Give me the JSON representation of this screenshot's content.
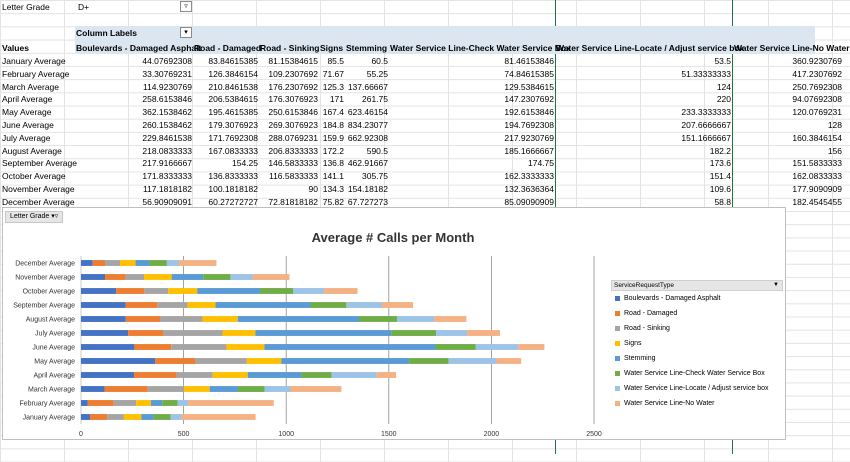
{
  "filter": {
    "label": "Letter Grade",
    "value": "D+",
    "button_icon": "filter-icon"
  },
  "pivot": {
    "column_labels": "Column Labels",
    "values_header": "Values",
    "columns": [
      "Boulevards - Damaged Asphalt",
      "Road - Damaged",
      "Road - Sinking",
      "Signs",
      "Stemming",
      "Water Service Line-Check Water Service Box",
      "Water Service Line-Locate / Adjust service box",
      "Water Service Line-No Water"
    ],
    "rows": [
      {
        "label": "January Average",
        "cells": [
          "44.07692308",
          "83.84615385",
          "81.15384615",
          "85.5",
          "60.5",
          "81.46153846",
          "53.5",
          "360.9230769"
        ]
      },
      {
        "label": "February Average",
        "cells": [
          "33.30769231",
          "126.3846154",
          "109.2307692",
          "71.67",
          "55.25",
          "74.84615385",
          "51.33333333",
          "417.2307692"
        ]
      },
      {
        "label": "March Average",
        "cells": [
          "114.9230769",
          "210.8461538",
          "176.2307692",
          "125.3",
          "137.66667",
          "129.5384615",
          "124",
          "250.7692308"
        ]
      },
      {
        "label": "April Average",
        "cells": [
          "258.6153846",
          "206.5384615",
          "176.3076923",
          "171",
          "261.75",
          "147.2307692",
          "220",
          "94.07692308"
        ]
      },
      {
        "label": "May Average",
        "cells": [
          "362.1538462",
          "195.4615385",
          "250.6153846",
          "167.4",
          "623.46154",
          "192.6153846",
          "233.3333333",
          "120.0769231"
        ]
      },
      {
        "label": "June Average",
        "cells": [
          "260.1538462",
          "179.3076923",
          "269.3076923",
          "184.8",
          "834.23077",
          "194.7692308",
          "207.6666667",
          "128"
        ]
      },
      {
        "label": "July Average",
        "cells": [
          "229.8461538",
          "171.7692308",
          "288.0769231",
          "159.9",
          "662.92308",
          "217.9230769",
          "151.1666667",
          "160.3846154"
        ]
      },
      {
        "label": "August Average",
        "cells": [
          "218.0833333",
          "167.0833333",
          "206.8333333",
          "172.2",
          "590.5",
          "185.1666667",
          "182.2",
          "156"
        ]
      },
      {
        "label": "September Average",
        "cells": [
          "217.9166667",
          "154.25",
          "146.5833333",
          "136.8",
          "462.91667",
          "174.75",
          "173.6",
          "151.5833333"
        ]
      },
      {
        "label": "October Average",
        "cells": [
          "171.8333333",
          "136.8333333",
          "116.5833333",
          "141.1",
          "305.75",
          "162.3333333",
          "151.4",
          "162.0833333"
        ]
      },
      {
        "label": "November Average",
        "cells": [
          "117.1818182",
          "100.1818182",
          "90",
          "134.3",
          "154.18182",
          "132.3636364",
          "109.6",
          "177.9090909"
        ]
      },
      {
        "label": "December Average",
        "cells": [
          "56.90909091",
          "60.27272727",
          "72.81818182",
          "75.82",
          "67.727273",
          "85.09090909",
          "58.8",
          "182.4545455"
        ]
      }
    ]
  },
  "chart": {
    "filter_label": "Letter Grade",
    "filter_icon": "filter-icon",
    "legend_title": "ServiceRequestType",
    "legend_icon": "dropdown-icon",
    "colors": [
      "#4472c4",
      "#ed7d31",
      "#a5a5a5",
      "#ffc000",
      "#5b9bd5",
      "#70ad47",
      "#9dc3e6",
      "#f4b183"
    ]
  },
  "chart_data": {
    "type": "bar",
    "orientation": "horizontal",
    "stacked": true,
    "title": "Average # Calls per Month",
    "categories": [
      "January Average",
      "February Average",
      "March Average",
      "April Average",
      "May Average",
      "June Average",
      "July Average",
      "August Average",
      "September Average",
      "October Average",
      "November Average",
      "December Average"
    ],
    "series": [
      {
        "name": "Boulevards - Damaged Asphalt",
        "values": [
          44.08,
          33.31,
          114.92,
          258.62,
          362.15,
          260.15,
          229.85,
          218.08,
          217.92,
          171.83,
          117.18,
          56.91
        ]
      },
      {
        "name": "Road - Damaged",
        "values": [
          83.85,
          126.38,
          210.85,
          206.54,
          195.46,
          179.31,
          171.77,
          167.08,
          154.25,
          136.83,
          100.18,
          60.27
        ]
      },
      {
        "name": "Road - Sinking",
        "values": [
          81.15,
          109.23,
          176.23,
          176.31,
          250.62,
          269.31,
          288.08,
          206.83,
          146.58,
          116.58,
          90,
          72.82
        ]
      },
      {
        "name": "Signs",
        "values": [
          85.5,
          71.67,
          125.3,
          171,
          167.4,
          184.8,
          159.9,
          172.2,
          136.8,
          141.1,
          134.3,
          75.82
        ]
      },
      {
        "name": "Stemming",
        "values": [
          60.5,
          55.25,
          137.67,
          261.75,
          623.46,
          834.23,
          662.92,
          590.5,
          462.92,
          305.75,
          154.18,
          67.73
        ]
      },
      {
        "name": "Water Service Line-Check Water Service Box",
        "values": [
          81.46,
          74.85,
          129.54,
          147.23,
          192.62,
          194.77,
          217.92,
          185.17,
          174.75,
          162.33,
          132.36,
          85.09
        ]
      },
      {
        "name": "Water Service Line-Locate / Adjust service box",
        "values": [
          53.5,
          51.33,
          124,
          220,
          233.33,
          207.67,
          151.17,
          182.2,
          173.6,
          151.4,
          109.6,
          58.8
        ]
      },
      {
        "name": "Water Service Line-No Water",
        "values": [
          360.92,
          417.23,
          250.77,
          94.08,
          120.08,
          128,
          160.38,
          156,
          151.58,
          162.08,
          177.91,
          182.45
        ]
      }
    ],
    "xlim": [
      0,
      2500
    ],
    "xticks": [
      "0",
      "500",
      "1000",
      "1500",
      "2000",
      "2500"
    ],
    "grid": true,
    "legend": "right"
  }
}
